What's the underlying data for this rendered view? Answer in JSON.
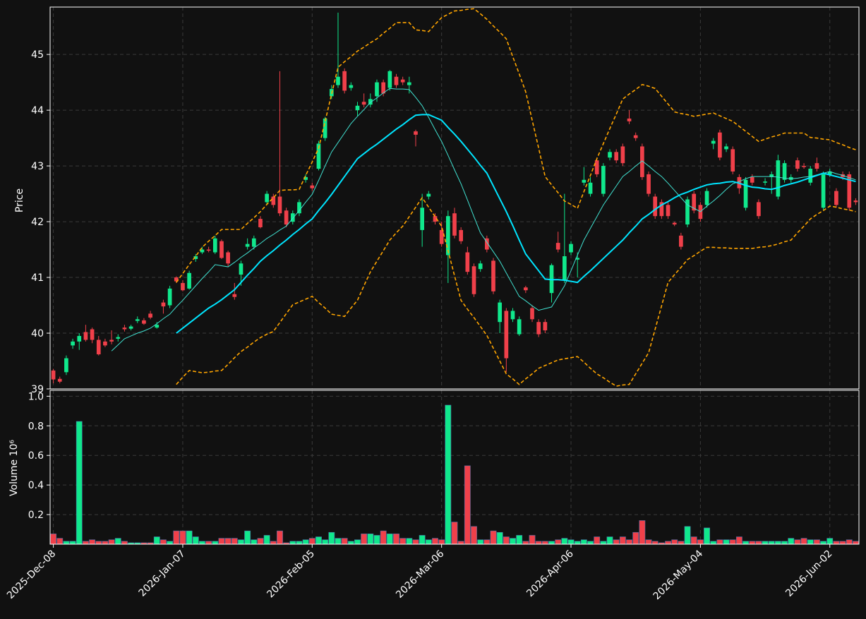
{
  "chart_data": {
    "type": "candlestick",
    "ylabel": "Price",
    "volume_label": "Volume  10⁶",
    "up_color": "#10e88c",
    "down_color": "#f0404a",
    "grid": true,
    "categories": [
      "2025-Dec-08",
      null,
      null,
      null,
      null,
      null,
      null,
      null,
      null,
      null,
      null,
      null,
      null,
      null,
      null,
      null,
      null,
      null,
      null,
      null,
      "2026-Jan-07",
      null,
      null,
      null,
      null,
      null,
      null,
      null,
      null,
      null,
      null,
      null,
      null,
      null,
      null,
      null,
      null,
      null,
      null,
      null,
      "2026-Feb-05",
      null,
      null,
      null,
      null,
      null,
      null,
      null,
      null,
      null,
      null,
      null,
      null,
      null,
      null,
      null,
      null,
      null,
      null,
      null,
      "2026-Mar-06",
      null,
      null,
      null,
      null,
      null,
      null,
      null,
      null,
      null,
      null,
      null,
      null,
      null,
      null,
      null,
      null,
      null,
      null,
      null,
      "2026-Apr-06",
      null,
      null,
      null,
      null,
      null,
      null,
      null,
      null,
      null,
      null,
      null,
      null,
      null,
      null,
      null,
      null,
      null,
      null,
      null,
      "2026-May-04",
      null,
      null,
      null,
      null,
      null,
      null,
      null,
      null,
      null,
      null,
      null,
      null,
      null,
      null,
      null,
      null,
      null,
      null,
      null,
      "2026-Jun-02",
      null,
      null,
      null,
      null
    ],
    "open": [
      39.33,
      39.18,
      39.3,
      39.78,
      39.85,
      40.02,
      40.07,
      39.88,
      39.85,
      39.88,
      39.9,
      40.1,
      40.08,
      40.22,
      40.23,
      40.35,
      40.1,
      40.55,
      40.5,
      41.0,
      40.9,
      40.8,
      41.33,
      41.45,
      41.5,
      41.45,
      41.65,
      41.45,
      40.7,
      41.05,
      41.55,
      41.55,
      42.05,
      42.35,
      42.45,
      42.45,
      42.2,
      42.0,
      42.15,
      42.75,
      42.65,
      42.95,
      43.5,
      44.25,
      44.45,
      44.7,
      44.4,
      44.0,
      44.15,
      44.1,
      44.25,
      44.5,
      44.4,
      44.6,
      44.55,
      44.45,
      43.62,
      41.85,
      42.45,
      42.1,
      41.85,
      41.4,
      42.15,
      41.85,
      41.45,
      41.2,
      41.15,
      41.7,
      41.3,
      40.2,
      40.4,
      40.25,
      39.98,
      40.82,
      40.45,
      40.2,
      40.2,
      40.72,
      41.62,
      40.95,
      41.45,
      41.32,
      42.7,
      42.5,
      43.1,
      42.5,
      43.15,
      43.25,
      43.35,
      43.85,
      43.55,
      43.35,
      42.85,
      42.45,
      42.35,
      42.3,
      41.98,
      41.75,
      41.95,
      42.5,
      42.3,
      42.3,
      43.4,
      43.6,
      43.3,
      43.3,
      42.8,
      42.25,
      42.8,
      42.35,
      42.7,
      42.8,
      42.45,
      42.75,
      42.75,
      43.1,
      43.0,
      42.7,
      43.05,
      42.25,
      42.85,
      42.55,
      42.85,
      42.85,
      42.38
    ],
    "high": [
      39.36,
      39.22,
      39.6,
      39.9,
      40.0,
      40.15,
      40.1,
      39.95,
      39.9,
      40.05,
      39.98,
      40.15,
      40.15,
      40.3,
      40.27,
      40.4,
      40.2,
      40.6,
      40.85,
      41.02,
      40.95,
      41.12,
      41.42,
      41.55,
      41.55,
      41.75,
      41.68,
      41.48,
      40.9,
      41.3,
      41.7,
      41.75,
      42.1,
      42.55,
      42.5,
      44.7,
      42.25,
      42.2,
      42.4,
      42.85,
      42.7,
      43.45,
      43.88,
      44.45,
      45.75,
      44.75,
      44.5,
      44.15,
      44.3,
      44.3,
      44.55,
      44.55,
      44.72,
      44.65,
      44.6,
      44.6,
      43.65,
      42.5,
      42.55,
      42.15,
      42.0,
      42.2,
      42.25,
      41.9,
      41.55,
      41.25,
      41.3,
      41.75,
      41.35,
      40.6,
      40.45,
      40.45,
      40.3,
      40.85,
      40.5,
      40.25,
      40.25,
      41.25,
      41.82,
      42.5,
      41.65,
      41.45,
      42.98,
      42.8,
      43.15,
      43.05,
      43.3,
      43.3,
      43.4,
      44.0,
      43.6,
      43.4,
      42.9,
      42.5,
      42.4,
      42.35,
      42.0,
      41.8,
      42.45,
      42.55,
      42.35,
      42.6,
      43.5,
      43.65,
      43.4,
      43.35,
      42.85,
      42.8,
      42.85,
      42.4,
      42.78,
      42.9,
      43.2,
      43.1,
      42.85,
      43.15,
      43.05,
      43.0,
      43.15,
      42.9,
      42.95,
      42.6,
      42.9,
      42.9,
      42.42
    ],
    "low": [
      39.1,
      39.1,
      39.25,
      39.72,
      39.7,
      39.85,
      39.82,
      39.6,
      39.75,
      39.8,
      39.85,
      40.03,
      40.05,
      40.18,
      40.15,
      40.25,
      40.08,
      40.35,
      40.45,
      40.9,
      40.75,
      40.78,
      41.28,
      41.42,
      41.45,
      41.42,
      41.33,
      41.2,
      40.6,
      40.85,
      41.5,
      41.5,
      41.88,
      42.3,
      42.25,
      42.1,
      41.9,
      41.95,
      42.1,
      42.7,
      42.55,
      42.92,
      43.45,
      44.2,
      44.4,
      44.3,
      44.35,
      43.9,
      44.05,
      44.05,
      44.15,
      44.25,
      44.35,
      44.4,
      44.45,
      44.3,
      43.35,
      41.55,
      42.4,
      41.95,
      41.55,
      40.9,
      41.7,
      41.6,
      41.05,
      40.65,
      41.1,
      41.45,
      40.7,
      40.0,
      39.3,
      40.2,
      39.95,
      40.72,
      40.2,
      39.93,
      40.0,
      40.55,
      41.45,
      40.9,
      41.4,
      41.0,
      42.65,
      42.45,
      42.8,
      42.45,
      43.1,
      43.05,
      43.0,
      43.75,
      43.45,
      42.75,
      42.45,
      42.05,
      42.05,
      42.05,
      41.92,
      41.5,
      41.9,
      42.15,
      42.0,
      42.25,
      43.3,
      43.1,
      43.25,
      42.85,
      42.5,
      42.2,
      42.65,
      42.05,
      42.65,
      42.5,
      42.4,
      42.7,
      42.7,
      42.9,
      42.95,
      42.65,
      42.9,
      42.2,
      42.8,
      42.25,
      42.75,
      42.2,
      42.3
    ],
    "close": [
      39.17,
      39.13,
      39.55,
      39.85,
      39.95,
      39.88,
      39.88,
      39.62,
      39.78,
      39.85,
      39.93,
      40.07,
      40.12,
      40.25,
      40.17,
      40.28,
      40.15,
      40.48,
      40.8,
      40.93,
      40.77,
      41.08,
      41.38,
      41.5,
      41.48,
      41.7,
      41.35,
      41.25,
      40.65,
      41.25,
      41.6,
      41.7,
      41.9,
      42.5,
      42.3,
      42.15,
      41.95,
      42.15,
      42.35,
      42.8,
      42.6,
      43.4,
      43.85,
      44.38,
      44.6,
      44.35,
      44.45,
      44.08,
      44.1,
      44.2,
      44.5,
      44.3,
      44.7,
      44.45,
      44.5,
      44.5,
      43.56,
      42.25,
      42.5,
      42.0,
      41.6,
      42.1,
      41.75,
      41.65,
      41.1,
      40.7,
      41.25,
      41.5,
      40.75,
      40.55,
      39.55,
      40.4,
      40.25,
      40.77,
      40.25,
      39.98,
      40.05,
      41.22,
      41.5,
      41.38,
      41.6,
      41.35,
      42.75,
      42.7,
      42.85,
      43.0,
      43.25,
      43.1,
      43.05,
      43.8,
      43.5,
      42.8,
      42.5,
      42.1,
      42.1,
      42.1,
      41.95,
      41.55,
      42.4,
      42.2,
      42.05,
      42.55,
      43.45,
      43.15,
      43.35,
      42.9,
      42.6,
      42.75,
      42.7,
      42.1,
      42.72,
      42.85,
      43.1,
      43.05,
      42.8,
      42.95,
      42.98,
      42.95,
      42.95,
      42.85,
      42.9,
      42.3,
      42.8,
      42.25,
      42.35
    ],
    "volume": [
      0.07,
      0.04,
      0.02,
      0.02,
      0.83,
      0.02,
      0.03,
      0.02,
      0.02,
      0.03,
      0.04,
      0.02,
      0.01,
      0.01,
      0.01,
      0.01,
      0.05,
      0.03,
      0.02,
      0.09,
      0.09,
      0.09,
      0.05,
      0.02,
      0.02,
      0.02,
      0.04,
      0.04,
      0.04,
      0.03,
      0.09,
      0.03,
      0.04,
      0.06,
      0.02,
      0.09,
      0.01,
      0.02,
      0.02,
      0.03,
      0.04,
      0.05,
      0.03,
      0.08,
      0.04,
      0.04,
      0.02,
      0.03,
      0.07,
      0.07,
      0.06,
      0.09,
      0.07,
      0.07,
      0.04,
      0.04,
      0.03,
      0.06,
      0.03,
      0.04,
      0.03,
      0.94,
      0.15,
      0.02,
      0.53,
      0.12,
      0.03,
      0.03,
      0.09,
      0.08,
      0.05,
      0.04,
      0.06,
      0.02,
      0.06,
      0.02,
      0.02,
      0.02,
      0.03,
      0.04,
      0.03,
      0.02,
      0.03,
      0.02,
      0.05,
      0.02,
      0.05,
      0.03,
      0.05,
      0.03,
      0.08,
      0.16,
      0.03,
      0.02,
      0.01,
      0.02,
      0.03,
      0.02,
      0.12,
      0.05,
      0.03,
      0.11,
      0.02,
      0.03,
      0.03,
      0.03,
      0.05,
      0.02,
      0.02,
      0.02,
      0.02,
      0.02,
      0.02,
      0.02,
      0.04,
      0.03,
      0.04,
      0.03,
      0.03,
      0.02,
      0.04,
      0.02,
      0.02,
      0.03,
      0.02
    ],
    "ylim": [
      39,
      45.85
    ],
    "yticks": [
      39,
      40,
      41,
      42,
      43,
      44,
      45
    ],
    "volume_ylim": [
      0,
      1.04
    ],
    "volume_yticks": [
      0.2,
      0.4,
      0.6,
      0.8,
      {
        "value": 1,
        "label": "1.0"
      }
    ],
    "overlays": [
      {
        "color": "#40e0d0",
        "width": 1,
        "dash": false,
        "values": [
          null,
          null,
          null,
          null,
          null,
          null,
          null,
          null,
          null,
          39.68,
          39.79,
          39.9,
          39.95,
          40.0,
          40.04,
          40.09,
          40.17,
          40.26,
          40.34,
          40.47,
          40.59,
          40.72,
          40.85,
          40.98,
          41.1,
          41.23,
          41.21,
          41.19,
          41.27,
          41.36,
          41.44,
          41.53,
          41.61,
          41.7,
          41.77,
          41.85,
          41.92,
          42.06,
          42.2,
          42.35,
          42.49,
          42.74,
          43.0,
          43.25,
          43.42,
          43.59,
          43.76,
          43.89,
          44.01,
          44.14,
          44.22,
          44.31,
          44.39,
          44.38,
          44.38,
          44.37,
          44.23,
          44.08,
          43.87,
          43.65,
          43.44,
          43.19,
          42.93,
          42.68,
          42.39,
          42.09,
          41.8,
          41.63,
          41.46,
          41.29,
          41.08,
          40.87,
          40.66,
          40.58,
          40.49,
          40.41,
          40.44,
          40.47,
          40.66,
          40.85,
          41.12,
          41.4,
          41.67,
          41.88,
          42.09,
          42.3,
          42.47,
          42.64,
          42.81,
          42.9,
          43.0,
          43.09,
          43.0,
          42.9,
          42.81,
          42.69,
          42.56,
          42.43,
          42.3,
          42.24,
          42.18,
          42.28,
          42.37,
          42.47,
          42.58,
          42.68,
          42.72,
          42.77,
          42.81,
          42.81,
          42.81,
          42.81,
          42.8,
          42.78,
          42.77,
          42.78,
          42.8,
          42.81,
          42.84,
          42.87,
          42.9,
          42.86,
          42.83,
          42.79,
          42.75
        ]
      },
      {
        "color": "#00e5ff",
        "width": 2,
        "dash": false,
        "values": [
          null,
          null,
          null,
          null,
          null,
          null,
          null,
          null,
          null,
          null,
          null,
          null,
          null,
          null,
          null,
          null,
          null,
          null,
          null,
          40.0,
          40.09,
          40.18,
          40.27,
          40.36,
          40.45,
          40.52,
          40.6,
          40.69,
          40.78,
          40.91,
          41.04,
          41.16,
          41.29,
          41.39,
          41.48,
          41.58,
          41.67,
          41.77,
          41.86,
          41.96,
          42.05,
          42.2,
          42.34,
          42.49,
          42.65,
          42.81,
          42.97,
          43.13,
          43.22,
          43.31,
          43.39,
          43.48,
          43.57,
          43.66,
          43.74,
          43.83,
          43.91,
          43.92,
          43.92,
          43.87,
          43.82,
          43.69,
          43.57,
          43.44,
          43.3,
          43.16,
          43.01,
          42.87,
          42.64,
          42.41,
          42.18,
          41.93,
          41.67,
          41.42,
          41.27,
          41.12,
          40.97,
          40.96,
          40.96,
          40.95,
          40.93,
          40.91,
          41.02,
          41.12,
          41.23,
          41.34,
          41.45,
          41.56,
          41.67,
          41.8,
          41.92,
          42.05,
          42.13,
          42.22,
          42.3,
          42.36,
          42.43,
          42.49,
          42.53,
          42.58,
          42.62,
          42.66,
          42.68,
          42.69,
          42.71,
          42.72,
          42.69,
          42.65,
          42.62,
          42.61,
          42.59,
          42.58,
          42.61,
          42.65,
          42.68,
          42.71,
          42.75,
          42.79,
          42.83,
          42.87,
          42.84,
          42.81,
          42.78,
          42.75,
          42.72
        ]
      },
      {
        "color": "#ffa500",
        "width": 1.6,
        "dash": true,
        "values": [
          null,
          null,
          null,
          null,
          null,
          null,
          null,
          null,
          null,
          null,
          null,
          null,
          null,
          null,
          null,
          null,
          null,
          null,
          null,
          40.91,
          41.07,
          41.23,
          41.38,
          41.54,
          41.65,
          41.75,
          41.86,
          41.86,
          41.86,
          41.86,
          41.97,
          42.07,
          42.18,
          42.31,
          42.43,
          42.56,
          42.57,
          42.57,
          42.58,
          42.83,
          43.07,
          43.32,
          43.8,
          44.29,
          44.77,
          44.87,
          44.96,
          45.06,
          45.13,
          45.21,
          45.28,
          45.38,
          45.47,
          45.57,
          45.57,
          45.57,
          45.44,
          45.43,
          45.41,
          45.54,
          45.66,
          45.72,
          45.78,
          45.79,
          45.81,
          45.82,
          45.73,
          45.63,
          45.51,
          45.4,
          45.28,
          44.96,
          44.65,
          44.33,
          43.82,
          43.32,
          42.81,
          42.66,
          42.52,
          42.37,
          42.31,
          42.24,
          42.54,
          42.83,
          43.13,
          43.4,
          43.67,
          43.93,
          44.2,
          44.29,
          44.37,
          44.46,
          44.43,
          44.39,
          44.25,
          44.11,
          43.97,
          43.94,
          43.92,
          43.89,
          43.91,
          43.93,
          43.95,
          43.9,
          43.85,
          43.8,
          43.71,
          43.62,
          43.53,
          43.44,
          43.48,
          43.52,
          43.55,
          43.59,
          43.59,
          43.59,
          43.59,
          43.51,
          43.5,
          43.48,
          43.47,
          43.42,
          43.38,
          43.33,
          43.29
        ]
      },
      {
        "color": "#ffa500",
        "width": 1.6,
        "dash": true,
        "values": [
          null,
          null,
          null,
          null,
          null,
          null,
          null,
          null,
          null,
          null,
          null,
          null,
          null,
          null,
          null,
          null,
          null,
          null,
          null,
          39.08,
          39.21,
          39.33,
          39.31,
          39.29,
          39.3,
          39.32,
          39.33,
          39.44,
          39.56,
          39.67,
          39.75,
          39.84,
          39.92,
          39.98,
          40.03,
          40.19,
          40.35,
          40.51,
          40.56,
          40.61,
          40.66,
          40.55,
          40.45,
          40.34,
          40.32,
          40.3,
          40.45,
          40.59,
          40.85,
          41.1,
          41.29,
          41.48,
          41.67,
          41.8,
          41.92,
          42.09,
          42.26,
          42.43,
          42.26,
          42.09,
          41.92,
          41.48,
          41.03,
          40.59,
          40.43,
          40.28,
          40.12,
          39.96,
          39.73,
          39.5,
          39.27,
          39.18,
          39.08,
          39.18,
          39.27,
          39.37,
          39.42,
          39.47,
          39.52,
          39.54,
          39.56,
          39.58,
          39.48,
          39.37,
          39.27,
          39.2,
          39.12,
          39.05,
          39.07,
          39.08,
          39.27,
          39.46,
          39.65,
          40.07,
          40.49,
          40.91,
          41.05,
          41.18,
          41.32,
          41.39,
          41.47,
          41.54,
          41.54,
          41.53,
          41.53,
          41.52,
          41.52,
          41.52,
          41.52,
          41.54,
          41.55,
          41.57,
          41.6,
          41.64,
          41.67,
          41.8,
          41.92,
          42.05,
          42.13,
          42.2,
          42.28,
          42.26,
          42.23,
          42.21,
          42.18
        ]
      }
    ]
  }
}
